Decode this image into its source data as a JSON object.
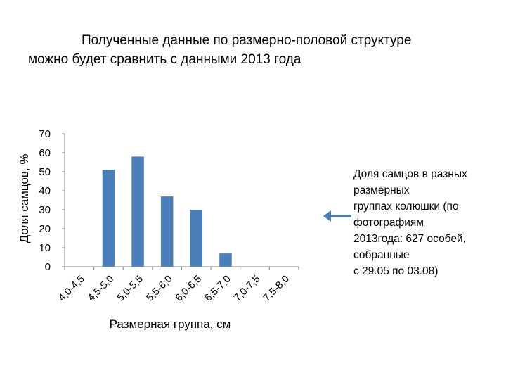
{
  "title": {
    "line1": "Полученные данные по размерно-половой структуре",
    "line2": "можно будет сравнить с данными 2013 года"
  },
  "note": {
    "lines": [
      "Доля самцов в разных",
      "размерных",
      "группах колюшки (по",
      "фотографиям",
      "2013года: 627 особей,",
      "собранные",
      "с 29.05 по 03.08)"
    ]
  },
  "arrow_icon": "left-arrow-icon",
  "colors": {
    "bar": "#4a7ebb",
    "arrow": "#4a7ebb",
    "axis": "#888888"
  },
  "chart_data": {
    "type": "bar",
    "categories": [
      "4,0-4,5",
      "4,5-5,0",
      "5,0-5,5",
      "5,5-6,0",
      "6,0-6,5",
      "6,5-7,0",
      "7,0-7,5",
      "7,5-8,0"
    ],
    "values": [
      0,
      51,
      58,
      37,
      30,
      7,
      0,
      0
    ],
    "xlabel": "Размерная группа, см",
    "ylabel": "Доля самцов, %",
    "ylim": [
      0,
      70
    ],
    "yticks": [
      0,
      10,
      20,
      30,
      40,
      50,
      60,
      70
    ],
    "grid": false
  }
}
